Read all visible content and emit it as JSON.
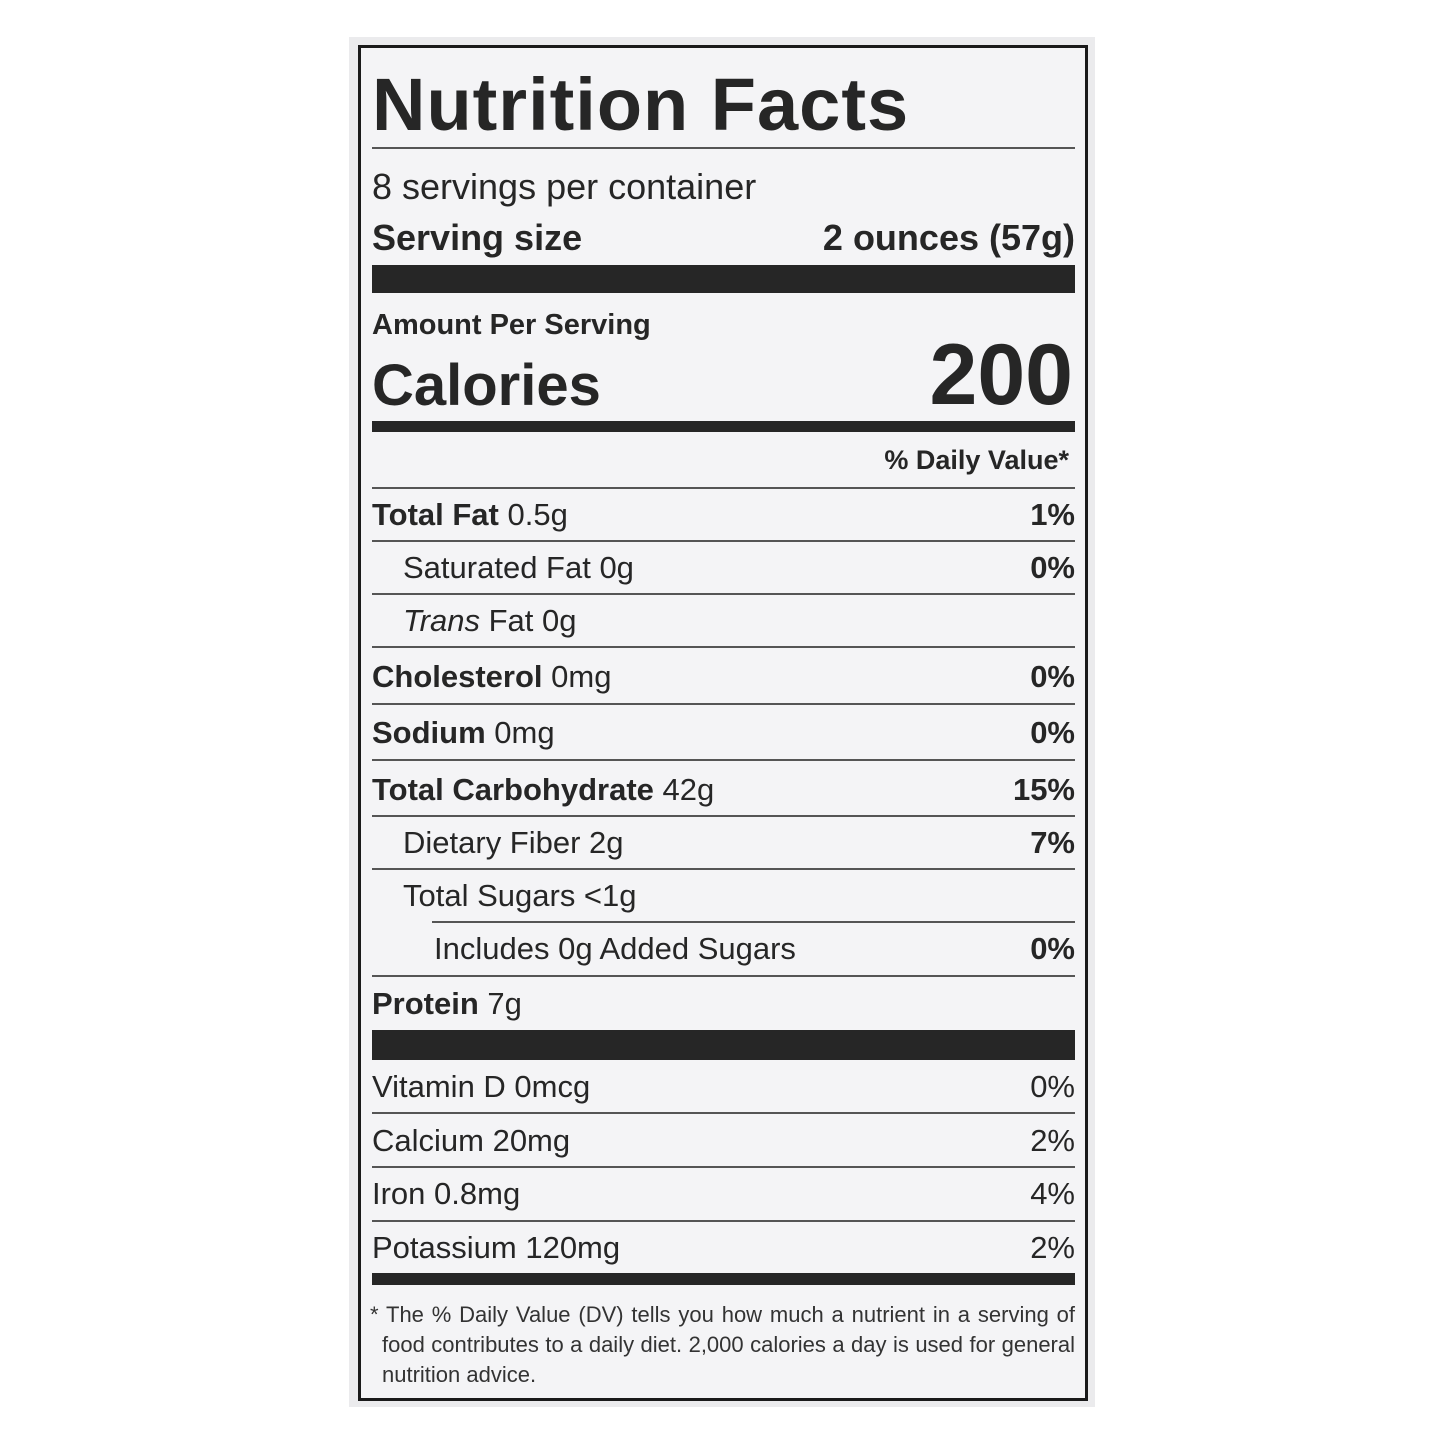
{
  "header": {
    "title": "Nutrition Facts",
    "servings": "8 servings per container",
    "serving_size_label": "Serving size",
    "serving_size_value": "2 ounces (57g)"
  },
  "calories": {
    "amount_label": "Amount Per Serving",
    "label": "Calories",
    "value": "200"
  },
  "daily_value_header": "% Daily Value*",
  "nutrients": [
    {
      "name": "Total Fat",
      "amount": "0.5g",
      "dv": "1%"
    },
    {
      "text": "Saturated Fat 0g",
      "dv": "0%"
    },
    {
      "name": "Trans",
      "amount": "Fat 0g"
    },
    {
      "name": "Cholesterol",
      "amount": "0mg",
      "dv": "0%"
    },
    {
      "name": "Sodium",
      "amount": "0mg",
      "dv": "0%"
    },
    {
      "name": "Total Carbohydrate",
      "amount": "42g",
      "dv": "15%"
    },
    {
      "text": "Dietary Fiber 2g",
      "dv": "7%"
    },
    {
      "text": "Total Sugars <1g"
    },
    {
      "text": "Includes 0g Added Sugars",
      "dv": "0%"
    },
    {
      "name": "Protein",
      "amount": "7g"
    }
  ],
  "vitamins": [
    {
      "text": "Vitamin D 0mcg",
      "dv": "0%"
    },
    {
      "text": "Calcium 20mg",
      "dv": "2%"
    },
    {
      "text": "Iron 0.8mg",
      "dv": "4%"
    },
    {
      "text": "Potassium 120mg",
      "dv": "2%"
    }
  ],
  "footnote": "* The % Daily Value (DV) tells you how much a nutrient in a serving of food contributes to a daily diet. 2,000 calories a day is used for general nutrition advice."
}
